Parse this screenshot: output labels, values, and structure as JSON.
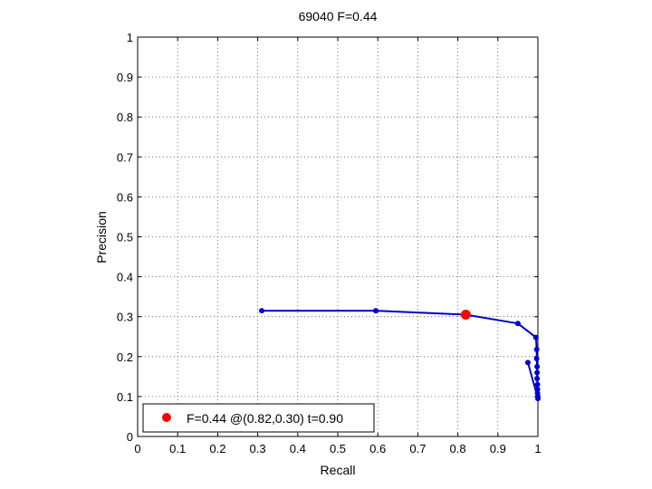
{
  "chart_data": {
    "type": "line",
    "title": "69040 F=0.44",
    "xlabel": "Recall",
    "ylabel": "Precision",
    "xlim": [
      0,
      1
    ],
    "ylim": [
      0,
      1
    ],
    "xticks": [
      "0",
      "0.1",
      "0.2",
      "0.3",
      "0.4",
      "0.5",
      "0.6",
      "0.7",
      "0.8",
      "0.9",
      "1"
    ],
    "yticks": [
      "0",
      "0.1",
      "0.2",
      "0.3",
      "0.4",
      "0.5",
      "0.6",
      "0.7",
      "0.8",
      "0.9",
      "1"
    ],
    "grid": true,
    "legend_position": "bottom-left",
    "series": [
      {
        "color": "#0000cc",
        "points": [
          [
            0.31,
            0.315
          ],
          [
            0.595,
            0.315
          ],
          [
            0.82,
            0.305
          ],
          [
            0.95,
            0.283
          ],
          [
            0.995,
            0.248
          ],
          [
            0.997,
            0.218
          ],
          [
            0.997,
            0.195
          ],
          [
            0.998,
            0.175
          ],
          [
            0.998,
            0.16
          ],
          [
            0.998,
            0.145
          ],
          [
            0.999,
            0.13
          ],
          [
            0.999,
            0.118
          ],
          [
            0.999,
            0.108
          ],
          [
            1.0,
            0.1
          ],
          [
            1.0,
            0.095
          ],
          [
            0.975,
            0.185
          ]
        ]
      }
    ],
    "highlight": {
      "x": 0.82,
      "y": 0.305,
      "color": "#ff0000",
      "legend": "F=0.44 @(0.82,0.30) t=0.90"
    }
  }
}
